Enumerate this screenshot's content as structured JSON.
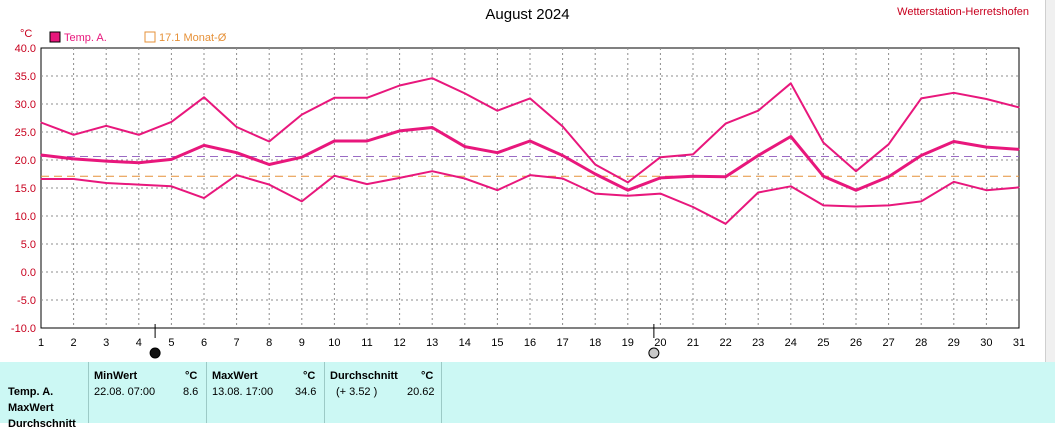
{
  "header": {
    "title": "August 2024",
    "station": "Wetterstation-Herretshofen"
  },
  "legend": {
    "series_label": "Temp. A.",
    "avg_label": "17.1 Monat-Ø"
  },
  "colors": {
    "series": "#e8177c",
    "monthly_avg": "#e69138",
    "overall_avg": "#9a6bc4",
    "panel_bg": "#ccf8f4"
  },
  "chart_data": {
    "type": "line",
    "y_unit": "°C",
    "ylim": [
      -10,
      40
    ],
    "y_ticks": [
      "40.0",
      "35.0",
      "30.0",
      "25.0",
      "20.0",
      "15.0",
      "10.0",
      "5.0",
      "0.0",
      "-5.0",
      "-10.0"
    ],
    "x": [
      1,
      2,
      3,
      4,
      5,
      6,
      7,
      8,
      9,
      10,
      11,
      12,
      13,
      14,
      15,
      16,
      17,
      18,
      19,
      20,
      21,
      22,
      23,
      24,
      25,
      26,
      27,
      28,
      29,
      30,
      31
    ],
    "grid": true,
    "series": [
      {
        "role": "max",
        "values": [
          26.7,
          24.5,
          26.1,
          24.5,
          26.8,
          31.2,
          25.9,
          23.3,
          28.1,
          31.1,
          31.1,
          33.3,
          34.6,
          31.9,
          28.8,
          31.0,
          26.0,
          19.2,
          16.0,
          20.5,
          21.0,
          26.5,
          28.8,
          33.7,
          23.1,
          18.0,
          22.8,
          31.0,
          32.0,
          30.9,
          29.4
        ]
      },
      {
        "role": "mean",
        "values": [
          20.9,
          20.2,
          19.8,
          19.5,
          20.1,
          22.6,
          21.3,
          19.2,
          20.5,
          23.4,
          23.4,
          25.2,
          25.8,
          22.4,
          21.3,
          23.4,
          20.8,
          17.5,
          14.6,
          16.8,
          17.1,
          17.0,
          20.8,
          24.2,
          17.1,
          14.6,
          17.0,
          20.8,
          23.3,
          22.3,
          21.9
        ]
      },
      {
        "role": "min",
        "values": [
          16.6,
          16.6,
          15.9,
          15.6,
          15.3,
          13.2,
          17.3,
          15.6,
          12.6,
          17.2,
          15.7,
          16.8,
          18.0,
          16.7,
          14.6,
          17.3,
          16.7,
          14.0,
          13.6,
          14.0,
          11.6,
          8.6,
          14.2,
          15.3,
          11.9,
          11.7,
          11.9,
          12.6,
          16.1,
          14.6,
          15.1
        ]
      }
    ],
    "reference_lines": [
      {
        "label": "17.1 Monat-Ø",
        "value": 17.1
      },
      {
        "value": 20.62
      }
    ],
    "moon_markers": [
      {
        "day": 4.5,
        "phase": "new-moon"
      },
      {
        "day": 19.8,
        "phase": "full-moon"
      }
    ]
  },
  "stats": {
    "min_header": "MinWert",
    "max_header": "MaxWert",
    "avg_header": "Durchschnitt",
    "unit": "°C",
    "row_labels": [
      "Temp. A.",
      "MaxWert",
      "Durchschnitt"
    ],
    "min_time": "22.08.  07:00",
    "min_value": "8.6",
    "max_time": "13.08.  17:00",
    "max_value": "34.6",
    "avg_delta": "(+ 3.52 )",
    "avg_value": "20.62"
  }
}
